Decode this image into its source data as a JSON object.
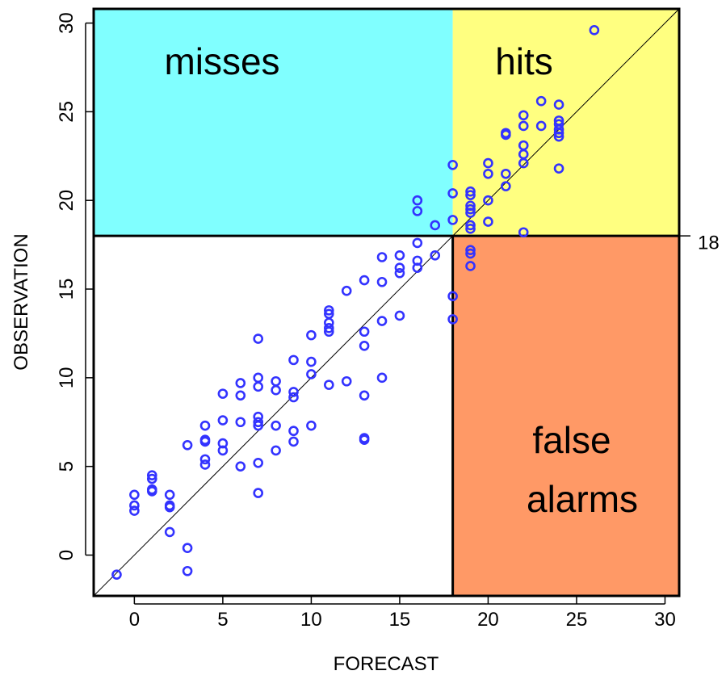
{
  "chart_data": {
    "type": "scatter",
    "xlabel": "FORECAST",
    "ylabel": "OBSERVATION",
    "xlim": [
      -2.3,
      30.8
    ],
    "ylim": [
      -2.3,
      30.8
    ],
    "x_ticks": [
      0,
      5,
      10,
      15,
      20,
      25,
      30
    ],
    "y_ticks": [
      0,
      5,
      10,
      15,
      20,
      25,
      30
    ],
    "threshold": 18,
    "threshold_label": "18",
    "diagonal": true,
    "point_color": "#3333ff",
    "regions": [
      {
        "name": "misses",
        "label": "misses",
        "color": "#80ffff"
      },
      {
        "name": "hits",
        "label": "hits",
        "color": "#ffff80"
      },
      {
        "name": "false-alarms",
        "label_lines": [
          "false",
          "alarms"
        ],
        "color": "#ff9966"
      }
    ],
    "points": [
      [
        -1,
        -1.1
      ],
      [
        0,
        3.4
      ],
      [
        0,
        2.8
      ],
      [
        0,
        2.5
      ],
      [
        1,
        4.5
      ],
      [
        1,
        4.3
      ],
      [
        1,
        3.7
      ],
      [
        1,
        3.6
      ],
      [
        2,
        3.4
      ],
      [
        2,
        2.8
      ],
      [
        2,
        2.7
      ],
      [
        2,
        1.3
      ],
      [
        3,
        6.2
      ],
      [
        3,
        0.4
      ],
      [
        3,
        -0.9
      ],
      [
        4,
        7.3
      ],
      [
        4,
        6.5
      ],
      [
        4,
        6.4
      ],
      [
        4,
        5.4
      ],
      [
        4,
        5.1
      ],
      [
        5,
        9.1
      ],
      [
        5,
        7.6
      ],
      [
        5,
        6.3
      ],
      [
        5,
        5.9
      ],
      [
        6,
        9.7
      ],
      [
        6,
        9.0
      ],
      [
        6,
        7.5
      ],
      [
        6,
        5.0
      ],
      [
        7,
        12.2
      ],
      [
        7,
        10.0
      ],
      [
        7,
        9.5
      ],
      [
        7,
        7.8
      ],
      [
        7,
        7.5
      ],
      [
        7,
        7.3
      ],
      [
        7,
        5.2
      ],
      [
        7,
        3.5
      ],
      [
        8,
        9.8
      ],
      [
        8,
        9.3
      ],
      [
        8,
        7.3
      ],
      [
        8,
        5.9
      ],
      [
        9,
        11.0
      ],
      [
        9,
        9.2
      ],
      [
        9,
        8.9
      ],
      [
        9,
        7.0
      ],
      [
        9,
        6.4
      ],
      [
        10,
        12.4
      ],
      [
        10,
        10.9
      ],
      [
        10,
        10.2
      ],
      [
        10,
        7.3
      ],
      [
        11,
        13.8
      ],
      [
        11,
        13.6
      ],
      [
        11,
        13.1
      ],
      [
        11,
        12.8
      ],
      [
        11,
        12.6
      ],
      [
        11,
        9.6
      ],
      [
        12,
        14.9
      ],
      [
        12,
        9.8
      ],
      [
        13,
        15.5
      ],
      [
        13,
        12.6
      ],
      [
        13,
        11.8
      ],
      [
        13,
        9.0
      ],
      [
        13,
        6.6
      ],
      [
        13,
        6.5
      ],
      [
        14,
        16.8
      ],
      [
        14,
        15.4
      ],
      [
        14,
        13.2
      ],
      [
        14,
        10.0
      ],
      [
        15,
        16.9
      ],
      [
        15,
        16.2
      ],
      [
        15,
        15.9
      ],
      [
        15,
        13.5
      ],
      [
        16,
        20.0
      ],
      [
        16,
        19.4
      ],
      [
        16,
        17.6
      ],
      [
        16,
        16.6
      ],
      [
        16,
        16.2
      ],
      [
        17,
        18.6
      ],
      [
        17,
        16.9
      ],
      [
        18,
        22.0
      ],
      [
        18,
        20.4
      ],
      [
        18,
        18.9
      ],
      [
        18,
        14.6
      ],
      [
        18,
        13.3
      ],
      [
        19,
        20.5
      ],
      [
        19,
        20.3
      ],
      [
        19,
        19.7
      ],
      [
        19,
        19.5
      ],
      [
        19,
        19.3
      ],
      [
        19,
        18.6
      ],
      [
        19,
        18.4
      ],
      [
        19,
        17.2
      ],
      [
        19,
        17.0
      ],
      [
        19,
        16.3
      ],
      [
        20,
        22.1
      ],
      [
        20,
        21.5
      ],
      [
        20,
        20.0
      ],
      [
        20,
        18.8
      ],
      [
        21,
        23.8
      ],
      [
        21,
        23.7
      ],
      [
        21,
        21.5
      ],
      [
        21,
        20.8
      ],
      [
        22,
        24.8
      ],
      [
        22,
        24.2
      ],
      [
        22,
        23.1
      ],
      [
        22,
        22.6
      ],
      [
        22,
        22.1
      ],
      [
        22,
        18.2
      ],
      [
        23,
        25.6
      ],
      [
        23,
        24.2
      ],
      [
        24,
        25.4
      ],
      [
        24,
        24.5
      ],
      [
        24,
        24.3
      ],
      [
        24,
        24.0
      ],
      [
        24,
        23.8
      ],
      [
        24,
        23.6
      ],
      [
        24,
        21.8
      ],
      [
        26,
        29.6
      ]
    ]
  }
}
